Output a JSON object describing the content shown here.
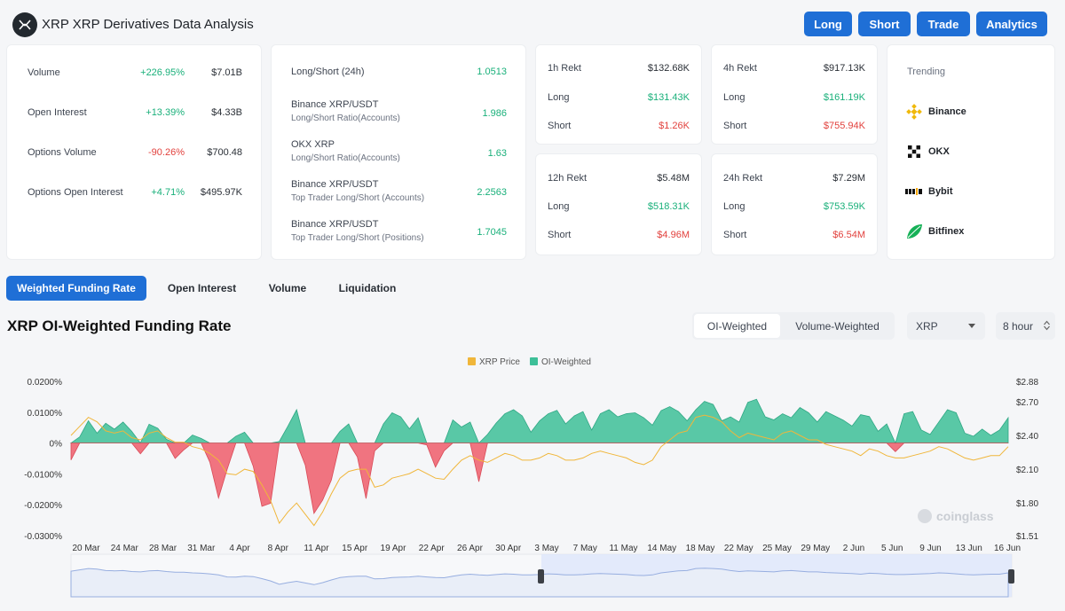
{
  "header": {
    "title": "XRP XRP Derivatives Data Analysis",
    "buttons": [
      "Long",
      "Short",
      "Trade",
      "Analytics"
    ],
    "accent": "#1f6fd6"
  },
  "market": [
    {
      "label": "Volume",
      "change": "+226.95%",
      "value": "$7.01B",
      "dir": "up"
    },
    {
      "label": "Open Interest",
      "change": "+13.39%",
      "value": "$4.33B",
      "dir": "up"
    },
    {
      "label": "Options Volume",
      "change": "-90.26%",
      "value": "$700.48",
      "dir": "down"
    },
    {
      "label": "Options Open Interest",
      "change": "+4.71%",
      "value": "$495.97K",
      "dir": "up"
    }
  ],
  "ratios": [
    {
      "label": "Long/Short (24h)",
      "sub": "",
      "value": "1.0513"
    },
    {
      "label": "Binance XRP/USDT",
      "sub": "Long/Short Ratio(Accounts)",
      "value": "1.986"
    },
    {
      "label": "OKX XRP",
      "sub": "Long/Short Ratio(Accounts)",
      "value": "1.63"
    },
    {
      "label": "Binance XRP/USDT",
      "sub": "Top Trader Long/Short (Accounts)",
      "value": "2.2563"
    },
    {
      "label": "Binance XRP/USDT",
      "sub": "Top Trader Long/Short (Positions)",
      "value": "1.7045"
    }
  ],
  "rekt": {
    "h1": {
      "title": "1h Rekt",
      "total": "$132.68K",
      "long_label": "Long",
      "long": "$131.43K",
      "short_label": "Short",
      "short": "$1.26K"
    },
    "h4": {
      "title": "4h Rekt",
      "total": "$917.13K",
      "long_label": "Long",
      "long": "$161.19K",
      "short_label": "Short",
      "short": "$755.94K"
    },
    "h12": {
      "title": "12h Rekt",
      "total": "$5.48M",
      "long_label": "Long",
      "long": "$518.31K",
      "short_label": "Short",
      "short": "$4.96M"
    },
    "h24": {
      "title": "24h Rekt",
      "total": "$7.29M",
      "long_label": "Long",
      "long": "$753.59K",
      "short_label": "Short",
      "short": "$6.54M"
    }
  },
  "trending": {
    "title": "Trending",
    "items": [
      "Binance",
      "OKX",
      "Bybit",
      "Bitfinex"
    ]
  },
  "tabs": [
    "Weighted Funding Rate",
    "Open Interest",
    "Volume",
    "Liquidation"
  ],
  "chart_header": {
    "title": "XRP OI-Weighted Funding Rate",
    "seg": [
      "OI-Weighted",
      "Volume-Weighted"
    ],
    "coin": "XRP",
    "interval": "8 hour"
  },
  "watermark": "coinglass",
  "chart_data": {
    "type": "area",
    "legend": [
      "XRP Price",
      "OI-Weighted"
    ],
    "colors": {
      "price": "#f0b63a",
      "positive": "#3dbf98",
      "negative": "#ef5d6b"
    },
    "x_ticks": [
      "20 Mar",
      "24 Mar",
      "28 Mar",
      "31 Mar",
      "4 Apr",
      "8 Apr",
      "11 Apr",
      "15 Apr",
      "19 Apr",
      "22 Apr",
      "26 Apr",
      "30 Apr",
      "3 May",
      "7 May",
      "11 May",
      "14 May",
      "18 May",
      "22 May",
      "25 May",
      "29 May",
      "2 Jun",
      "5 Jun",
      "9 Jun",
      "13 Jun",
      "16 Jun"
    ],
    "y_left_ticks": [
      "0.0200%",
      "0.0100%",
      "0%",
      "-0.0100%",
      "-0.0200%",
      "-0.0300%"
    ],
    "y_left_range": [
      -0.03,
      0.02
    ],
    "y_right_ticks": [
      "$2.88",
      "$2.70",
      "$2.40",
      "$2.10",
      "$1.80",
      "$1.51"
    ],
    "y_right_range": [
      1.51,
      2.88
    ],
    "funding": [
      -0.0055,
      0.002,
      0.0072,
      0.0032,
      0.0064,
      0.0045,
      0.0068,
      0.0038,
      -0.0035,
      0.0061,
      0.0048,
      0.0012,
      -0.005,
      -0.0022,
      0.0026,
      0.0015,
      -0.0062,
      -0.0178,
      -0.0085,
      0.0022,
      0.0035,
      -0.0075,
      -0.0205,
      -0.0195,
      0.0005,
      0.0055,
      0.0108,
      -0.0072,
      -0.0228,
      -0.0185,
      -0.012,
      0.0038,
      0.0062,
      -0.0045,
      -0.018,
      -0.0025,
      0.0062,
      0.0098,
      0.0085,
      0.0046,
      0.0082,
      -0.0006,
      -0.0078,
      -0.0025,
      0.0075,
      0.0052,
      0.0068,
      -0.0125,
      0.0028,
      0.0065,
      0.0095,
      0.0108,
      0.0088,
      0.0035,
      0.0072,
      0.0095,
      0.0106,
      0.0062,
      0.0088,
      0.0102,
      0.0042,
      0.0095,
      0.0108,
      0.0085,
      0.0095,
      0.0098,
      0.0082,
      0.0058,
      0.0105,
      0.0118,
      0.0102,
      0.0072,
      0.0108,
      0.0135,
      0.0125,
      0.0072,
      0.0085,
      0.0068,
      0.0132,
      0.0142,
      0.0085,
      0.0075,
      0.0095,
      0.0082,
      0.0115,
      0.0098,
      0.0068,
      0.0102,
      0.0088,
      0.0074,
      0.0055,
      0.0092,
      0.0086,
      0.0038,
      0.0062,
      -0.0028,
      0.0095,
      0.0102,
      0.0042,
      0.0028,
      0.0068,
      0.0108,
      0.0098,
      0.0032,
      0.0022,
      0.0045,
      0.0025,
      0.0042,
      0.0082
    ],
    "price": [
      2.4,
      2.48,
      2.56,
      2.52,
      2.44,
      2.42,
      2.44,
      2.38,
      2.36,
      2.42,
      2.44,
      2.38,
      2.34,
      2.34,
      2.3,
      2.28,
      2.24,
      2.18,
      2.06,
      2.05,
      2.1,
      2.08,
      1.96,
      1.82,
      1.62,
      1.72,
      1.8,
      1.7,
      1.6,
      1.72,
      1.88,
      2.02,
      2.08,
      2.1,
      2.1,
      1.94,
      1.96,
      2.02,
      2.04,
      2.06,
      2.1,
      2.06,
      2.02,
      2.01,
      2.1,
      2.18,
      2.22,
      2.18,
      2.16,
      2.2,
      2.24,
      2.22,
      2.18,
      2.18,
      2.2,
      2.24,
      2.22,
      2.18,
      2.18,
      2.2,
      2.24,
      2.26,
      2.24,
      2.22,
      2.2,
      2.16,
      2.14,
      2.18,
      2.3,
      2.36,
      2.42,
      2.44,
      2.56,
      2.58,
      2.56,
      2.52,
      2.44,
      2.38,
      2.42,
      2.4,
      2.38,
      2.36,
      2.42,
      2.44,
      2.4,
      2.36,
      2.36,
      2.32,
      2.3,
      2.28,
      2.26,
      2.22,
      2.28,
      2.26,
      2.22,
      2.2,
      2.2,
      2.22,
      2.24,
      2.26,
      2.3,
      2.28,
      2.24,
      2.2,
      2.18,
      2.2,
      2.22,
      2.22,
      2.3
    ]
  }
}
